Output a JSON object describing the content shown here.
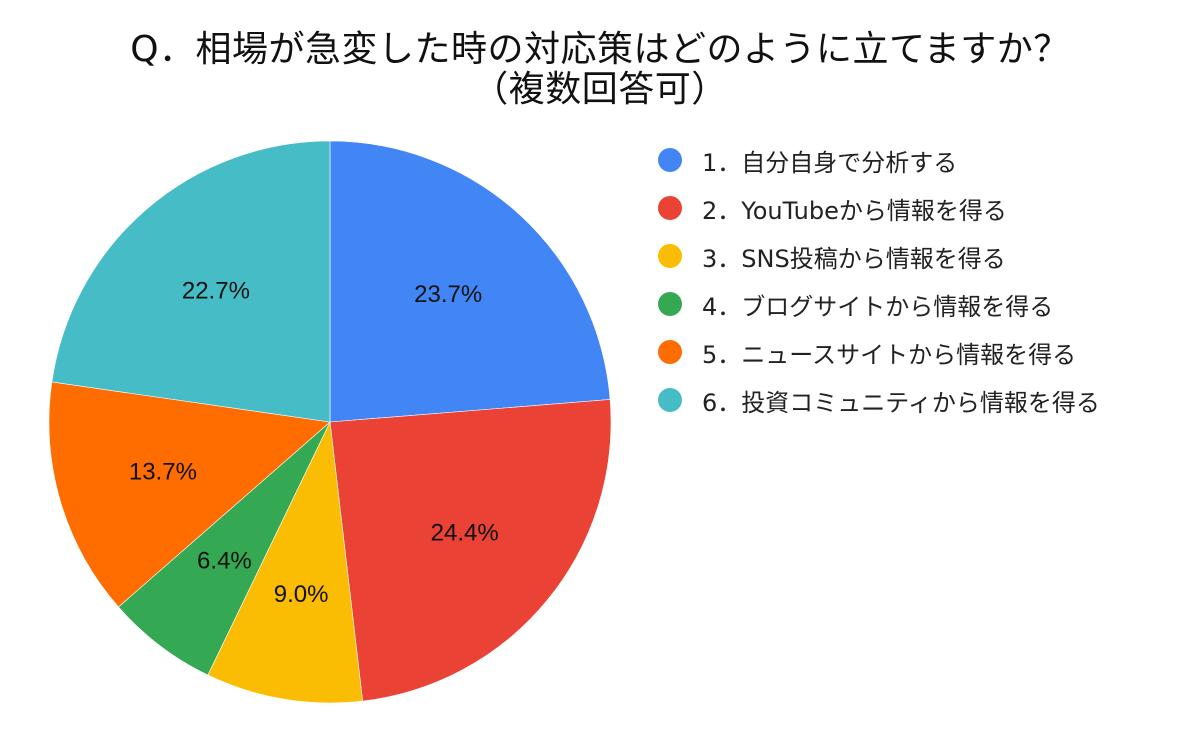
{
  "title": {
    "line1": "Q．相場が急変した時の対応策はどのように立てますか？",
    "line2": "（複数回答可）"
  },
  "legend": {
    "items": [
      {
        "label": "1．自分自身で分析する",
        "color": "#4285F4",
        "icon": "circle-swatch"
      },
      {
        "label": "2．YouTubeから情報を得る",
        "color": "#EA4335",
        "icon": "circle-swatch"
      },
      {
        "label": "3．SNS投稿から情報を得る",
        "color": "#FBBC04",
        "icon": "circle-swatch"
      },
      {
        "label": "4．ブログサイトから情報を得る",
        "color": "#34A853",
        "icon": "circle-swatch"
      },
      {
        "label": "5．ニュースサイトから情報を得る",
        "color": "#FF6D01",
        "icon": "circle-swatch"
      },
      {
        "label": "6．投資コミュニティから情報を得る",
        "color": "#46BDC6",
        "icon": "circle-swatch"
      }
    ]
  },
  "chart_data": {
    "type": "pie",
    "title": "Q．相場が急変した時の対応策はどのように立てますか？（複数回答可）",
    "categories": [
      "1．自分自身で分析する",
      "2．YouTubeから情報を得る",
      "3．SNS投稿から情報を得る",
      "4．ブログサイトから情報を得る",
      "5．ニュースサイトから情報を得る",
      "6．投資コミュニティから情報を得る"
    ],
    "values": [
      23.7,
      24.4,
      9.0,
      6.4,
      13.7,
      22.7
    ],
    "labels": [
      "23.7%",
      "24.4%",
      "9.0%",
      "6.4%",
      "13.7%",
      "22.7%"
    ],
    "colors": [
      "#4285F4",
      "#EA4335",
      "#FBBC04",
      "#34A853",
      "#FF6D01",
      "#46BDC6"
    ],
    "start_angle": "12 o'clock",
    "direction": "clockwise",
    "legend_position": "right",
    "unit": "%"
  }
}
